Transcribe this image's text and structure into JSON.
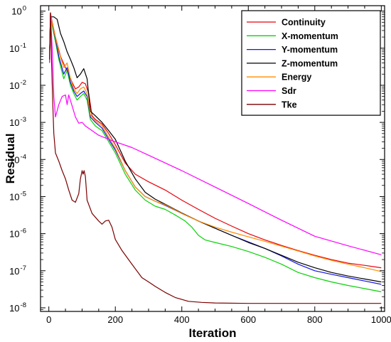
{
  "chart_data": {
    "type": "line",
    "xlabel": "Iteration",
    "ylabel": "Residual",
    "x_scale": "linear",
    "y_scale": "log",
    "xlim": [
      -25,
      1010
    ],
    "ylim": [
      8e-09,
      1.4
    ],
    "x_ticks": [
      0,
      200,
      400,
      600,
      800,
      1000
    ],
    "x_tick_labels": [
      "0",
      "200",
      "400",
      "600",
      "800",
      "1000"
    ],
    "y_tick_exponents": [
      0,
      -1,
      -2,
      -3,
      -4,
      -5,
      -6,
      -7,
      -8
    ],
    "y_tick_base": "10",
    "legend_position": "top-right",
    "grid": false,
    "series": [
      {
        "name": "Continuity",
        "color": "#e8000b",
        "points": [
          [
            2,
            0.04
          ],
          [
            5,
            0.9
          ],
          [
            10,
            0.5
          ],
          [
            20,
            0.2
          ],
          [
            35,
            0.06
          ],
          [
            50,
            0.03
          ],
          [
            60,
            0.02
          ],
          [
            70,
            0.012
          ],
          [
            80,
            0.008
          ],
          [
            90,
            0.009
          ],
          [
            100,
            0.012
          ],
          [
            110,
            0.011
          ],
          [
            120,
            0.006
          ],
          [
            130,
            0.0015
          ],
          [
            140,
            0.0012
          ],
          [
            160,
            0.0009
          ],
          [
            180,
            0.0005
          ],
          [
            200,
            0.00025
          ],
          [
            230,
            8e-05
          ],
          [
            260,
            4e-05
          ],
          [
            300,
            2.5e-05
          ],
          [
            350,
            1.5e-05
          ],
          [
            400,
            8e-06
          ],
          [
            450,
            4.5e-06
          ],
          [
            500,
            2.6e-06
          ],
          [
            550,
            1.6e-06
          ],
          [
            600,
            1e-06
          ],
          [
            650,
            6.8e-07
          ],
          [
            700,
            4.8e-07
          ],
          [
            750,
            3.5e-07
          ],
          [
            800,
            2.6e-07
          ],
          [
            850,
            2e-07
          ],
          [
            900,
            1.6e-07
          ],
          [
            950,
            1.4e-07
          ],
          [
            1000,
            1.2e-07
          ]
        ]
      },
      {
        "name": "X-momentum",
        "color": "#0ad20a",
        "points": [
          [
            2,
            0.05
          ],
          [
            5,
            0.8
          ],
          [
            10,
            0.4
          ],
          [
            20,
            0.15
          ],
          [
            30,
            0.05
          ],
          [
            45,
            0.015
          ],
          [
            55,
            0.025
          ],
          [
            65,
            0.01
          ],
          [
            75,
            0.006
          ],
          [
            85,
            0.004
          ],
          [
            95,
            0.005
          ],
          [
            105,
            0.006
          ],
          [
            115,
            0.004
          ],
          [
            125,
            0.0012
          ],
          [
            140,
            0.0008
          ],
          [
            160,
            0.0006
          ],
          [
            180,
            0.0003
          ],
          [
            200,
            0.00015
          ],
          [
            230,
            4e-05
          ],
          [
            260,
            1.5e-05
          ],
          [
            290,
            8e-06
          ],
          [
            320,
            5.5e-06
          ],
          [
            350,
            4.5e-06
          ],
          [
            380,
            3.2e-06
          ],
          [
            410,
            2.2e-06
          ],
          [
            430,
            1.5e-06
          ],
          [
            450,
            9e-07
          ],
          [
            470,
            6.8e-07
          ],
          [
            500,
            5.8e-07
          ],
          [
            550,
            4.5e-07
          ],
          [
            600,
            3.3e-07
          ],
          [
            650,
            2.3e-07
          ],
          [
            700,
            1.5e-07
          ],
          [
            750,
            9e-08
          ],
          [
            800,
            6.5e-08
          ],
          [
            850,
            5e-08
          ],
          [
            900,
            4e-08
          ],
          [
            950,
            3.3e-08
          ],
          [
            1000,
            2.7e-08
          ]
        ]
      },
      {
        "name": "Y-momentum",
        "color": "#1414e6",
        "points": [
          [
            2,
            0.05
          ],
          [
            5,
            0.85
          ],
          [
            10,
            0.45
          ],
          [
            20,
            0.18
          ],
          [
            30,
            0.06
          ],
          [
            45,
            0.02
          ],
          [
            55,
            0.03
          ],
          [
            65,
            0.012
          ],
          [
            75,
            0.007
          ],
          [
            85,
            0.005
          ],
          [
            95,
            0.006
          ],
          [
            105,
            0.007
          ],
          [
            115,
            0.005
          ],
          [
            125,
            0.0014
          ],
          [
            140,
            0.001
          ],
          [
            160,
            0.0007
          ],
          [
            180,
            0.00035
          ],
          [
            200,
            0.00018
          ],
          [
            230,
            5e-05
          ],
          [
            260,
            1.8e-05
          ],
          [
            290,
            1e-05
          ],
          [
            320,
            7.5e-06
          ],
          [
            350,
            5.8e-06
          ],
          [
            400,
            3.5e-06
          ],
          [
            450,
            2.2e-06
          ],
          [
            500,
            1.4e-06
          ],
          [
            550,
            9e-07
          ],
          [
            600,
            6e-07
          ],
          [
            650,
            4e-07
          ],
          [
            700,
            2.5e-07
          ],
          [
            750,
            1.5e-07
          ],
          [
            800,
            1e-07
          ],
          [
            850,
            8e-08
          ],
          [
            900,
            6.5e-08
          ],
          [
            950,
            5.3e-08
          ],
          [
            1000,
            4.3e-08
          ]
        ]
      },
      {
        "name": "Z-momentum",
        "color": "#000000",
        "points": [
          [
            2,
            0.05
          ],
          [
            5,
            0.7
          ],
          [
            15,
            0.7
          ],
          [
            25,
            0.6
          ],
          [
            35,
            0.25
          ],
          [
            45,
            0.15
          ],
          [
            55,
            0.08
          ],
          [
            65,
            0.05
          ],
          [
            75,
            0.03
          ],
          [
            85,
            0.016
          ],
          [
            95,
            0.02
          ],
          [
            105,
            0.028
          ],
          [
            115,
            0.015
          ],
          [
            125,
            0.002
          ],
          [
            140,
            0.0015
          ],
          [
            160,
            0.001
          ],
          [
            180,
            0.0006
          ],
          [
            200,
            0.00035
          ],
          [
            230,
            9e-05
          ],
          [
            260,
            3e-05
          ],
          [
            290,
            1.3e-05
          ],
          [
            320,
            8.5e-06
          ],
          [
            350,
            6.2e-06
          ],
          [
            400,
            3.6e-06
          ],
          [
            450,
            2.2e-06
          ],
          [
            500,
            1.4e-06
          ],
          [
            550,
            9e-07
          ],
          [
            600,
            5.8e-07
          ],
          [
            650,
            4e-07
          ],
          [
            700,
            2.6e-07
          ],
          [
            750,
            1.7e-07
          ],
          [
            800,
            1.2e-07
          ],
          [
            850,
            9e-08
          ],
          [
            900,
            7.2e-08
          ],
          [
            950,
            6e-08
          ],
          [
            1000,
            5e-08
          ]
        ]
      },
      {
        "name": "Energy",
        "color": "#ff8c00",
        "points": [
          [
            2,
            0.05
          ],
          [
            5,
            0.85
          ],
          [
            10,
            0.45
          ],
          [
            20,
            0.2
          ],
          [
            30,
            0.08
          ],
          [
            45,
            0.03
          ],
          [
            55,
            0.04
          ],
          [
            65,
            0.015
          ],
          [
            75,
            0.008
          ],
          [
            85,
            0.006
          ],
          [
            95,
            0.008
          ],
          [
            105,
            0.009
          ],
          [
            115,
            0.006
          ],
          [
            125,
            0.0016
          ],
          [
            140,
            0.0011
          ],
          [
            160,
            0.0008
          ],
          [
            180,
            0.0004
          ],
          [
            200,
            0.0002
          ],
          [
            230,
            5e-05
          ],
          [
            260,
            1.8e-05
          ],
          [
            290,
            1e-05
          ],
          [
            320,
            7.5e-06
          ],
          [
            350,
            6e-06
          ],
          [
            400,
            3.5e-06
          ],
          [
            450,
            2.2e-06
          ],
          [
            500,
            1.5e-06
          ],
          [
            550,
            1.1e-06
          ],
          [
            600,
            8.2e-07
          ],
          [
            650,
            6.2e-07
          ],
          [
            700,
            4.6e-07
          ],
          [
            750,
            3.4e-07
          ],
          [
            800,
            2.5e-07
          ],
          [
            850,
            1.9e-07
          ],
          [
            900,
            1.5e-07
          ],
          [
            950,
            1.2e-07
          ],
          [
            1000,
            9.5e-08
          ]
        ]
      },
      {
        "name": "Sdr",
        "color": "#ff00ff",
        "points": [
          [
            2,
            0.04
          ],
          [
            5,
            0.8
          ],
          [
            10,
            0.1
          ],
          [
            15,
            0.005
          ],
          [
            20,
            0.0014
          ],
          [
            30,
            0.003
          ],
          [
            40,
            0.005
          ],
          [
            50,
            0.0055
          ],
          [
            55,
            0.003
          ],
          [
            60,
            0.0055
          ],
          [
            70,
            0.0028
          ],
          [
            80,
            0.0014
          ],
          [
            90,
            0.00095
          ],
          [
            100,
            0.001
          ],
          [
            110,
            0.0008
          ],
          [
            130,
            0.0006
          ],
          [
            150,
            0.00045
          ],
          [
            180,
            0.00035
          ],
          [
            200,
            0.0003
          ],
          [
            250,
            0.00021
          ],
          [
            300,
            0.00013
          ],
          [
            400,
            5e-05
          ],
          [
            500,
            1.8e-05
          ],
          [
            600,
            6.5e-06
          ],
          [
            700,
            2.3e-06
          ],
          [
            800,
            8.5e-07
          ],
          [
            900,
            4.7e-07
          ],
          [
            1000,
            2.7e-07
          ]
        ]
      },
      {
        "name": "Tke",
        "color": "#7a0000",
        "points": [
          [
            2,
            0.05
          ],
          [
            5,
            0.9
          ],
          [
            8,
            0.05
          ],
          [
            12,
            0.003
          ],
          [
            15,
            0.0005
          ],
          [
            20,
            0.00015
          ],
          [
            30,
            9e-05
          ],
          [
            40,
            5e-05
          ],
          [
            50,
            3e-05
          ],
          [
            60,
            1.5e-05
          ],
          [
            70,
            8e-06
          ],
          [
            80,
            7e-06
          ],
          [
            90,
            1.2e-05
          ],
          [
            95,
            3e-05
          ],
          [
            100,
            5e-05
          ],
          [
            103,
            4e-05
          ],
          [
            106,
            5e-05
          ],
          [
            110,
            3.5e-05
          ],
          [
            115,
            8e-06
          ],
          [
            130,
            3.5e-06
          ],
          [
            150,
            2.2e-06
          ],
          [
            160,
            1.8e-06
          ],
          [
            170,
            2.2e-06
          ],
          [
            180,
            2.3e-06
          ],
          [
            190,
            1.5e-06
          ],
          [
            200,
            7e-07
          ],
          [
            220,
            3.5e-07
          ],
          [
            250,
            1.5e-07
          ],
          [
            280,
            6.5e-08
          ],
          [
            300,
            5e-08
          ],
          [
            320,
            3.8e-08
          ],
          [
            350,
            2.6e-08
          ],
          [
            380,
            1.9e-08
          ],
          [
            420,
            1.5e-08
          ],
          [
            460,
            1.4e-08
          ],
          [
            500,
            1.35e-08
          ],
          [
            600,
            1.32e-08
          ],
          [
            700,
            1.32e-08
          ],
          [
            800,
            1.32e-08
          ],
          [
            1000,
            1.32e-08
          ]
        ]
      }
    ]
  }
}
